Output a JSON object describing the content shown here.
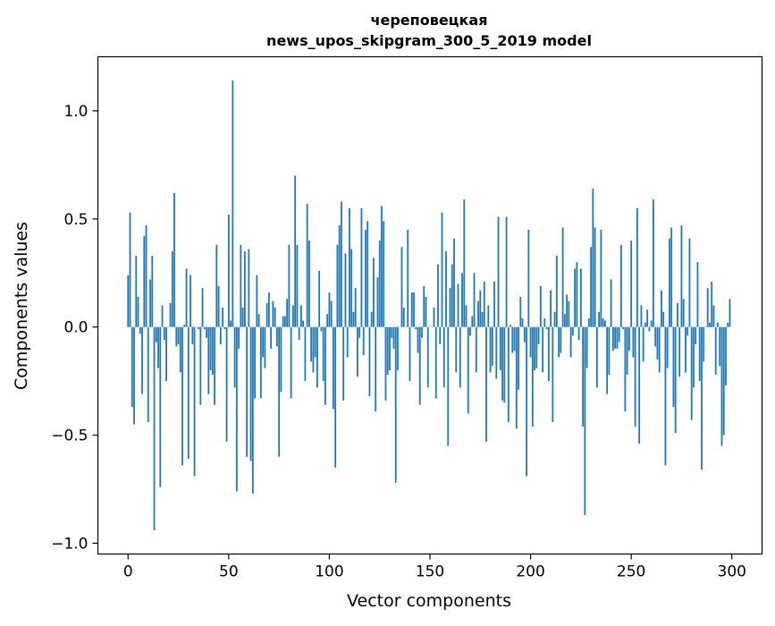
{
  "chart_data": {
    "type": "bar",
    "title_line1": "череповецкая",
    "title_line2": "news_upos_skipgram_300_5_2019 model",
    "xlabel": "Vector components",
    "ylabel": "Components values",
    "xlim": [
      -15,
      315
    ],
    "ylim": [
      -1.05,
      1.25
    ],
    "xticks": [
      0,
      50,
      100,
      150,
      200,
      250,
      300
    ],
    "xtick_labels": [
      "0",
      "50",
      "100",
      "150",
      "200",
      "250",
      "300"
    ],
    "yticks": [
      -1.0,
      -0.5,
      0.0,
      0.5,
      1.0
    ],
    "ytick_labels": [
      "−1.0",
      "−0.5",
      "0.0",
      "0.5",
      "1.0"
    ],
    "grid": false,
    "bar_color": "#1f77b4",
    "values": [
      0.24,
      0.53,
      -0.37,
      -0.45,
      0.33,
      0.14,
      -0.03,
      -0.31,
      0.42,
      0.47,
      -0.44,
      0.22,
      0.33,
      -0.94,
      -0.07,
      -0.19,
      -0.74,
      0.1,
      -0.06,
      -0.25,
      0.0,
      0.11,
      0.35,
      0.62,
      -0.09,
      -0.08,
      -0.21,
      -0.64,
      0.01,
      0.27,
      -0.61,
      0.24,
      -0.08,
      -0.69,
      0.0,
      -0.01,
      -0.36,
      0.18,
      -0.01,
      -0.05,
      -0.31,
      -0.2,
      -0.22,
      -0.36,
      0.38,
      0.19,
      -0.08,
      0.09,
      -0.01,
      -0.53,
      0.52,
      0.03,
      1.14,
      -0.28,
      -0.76,
      -0.1,
      0.38,
      0.09,
      0.35,
      -0.6,
      0.36,
      -0.62,
      -0.77,
      -0.33,
      0.24,
      0.06,
      -0.33,
      -0.14,
      -0.19,
      0.11,
      0.16,
      -0.1,
      0.12,
      0.09,
      -0.09,
      -0.6,
      -0.3,
      0.05,
      0.05,
      0.13,
      0.38,
      -0.33,
      0.1,
      0.7,
      0.38,
      -0.06,
      0.1,
      0.03,
      -0.25,
      0.57,
      0.4,
      -0.16,
      -0.21,
      -0.14,
      -0.28,
      0.26,
      -0.02,
      -0.25,
      -0.36,
      0.06,
      0.16,
      0.12,
      -0.38,
      -0.65,
      0.38,
      0.47,
      0.58,
      -0.34,
      0.34,
      -0.14,
      0.55,
      0.36,
      0.07,
      0.18,
      -0.23,
      -0.05,
      0.55,
      -0.13,
      0.45,
      0.49,
      -0.32,
      0.07,
      0.32,
      -0.39,
      0.23,
      0.4,
      0.56,
      0.49,
      -0.34,
      -0.22,
      -0.2,
      -0.05,
      -0.1,
      -0.72,
      -0.2,
      0.0,
      0.37,
      0.09,
      0.0,
      0.45,
      -0.25,
      0.16,
      0.16,
      -0.01,
      -0.12,
      -0.36,
      -0.05,
      0.19,
      0.14,
      -0.28,
      0.0,
      0.0,
      0.09,
      -0.33,
      0.29,
      -0.08,
      0.53,
      -0.28,
      0.35,
      -0.55,
      0.18,
      0.29,
      0.41,
      -0.21,
      0.2,
      -0.28,
      0.25,
      0.59,
      0.1,
      -0.4,
      -0.04,
      0.05,
      0.25,
      -0.21,
      0.12,
      0.17,
      0.07,
      0.21,
      -0.53,
      0.1,
      -0.21,
      -0.18,
      0.21,
      -0.24,
      0.51,
      -0.2,
      -0.34,
      -0.35,
      0.51,
      -0.44,
      0.01,
      -0.12,
      -0.11,
      -0.47,
      -0.29,
      0.14,
      0.04,
      -0.07,
      -0.69,
      0.45,
      -0.14,
      -0.46,
      -0.2,
      -0.19,
      -0.08,
      0.19,
      -0.21,
      0.04,
      -0.01,
      -0.25,
      0.17,
      -0.44,
      0.07,
      0.33,
      -0.14,
      -0.12,
      0.46,
      0.06,
      0.15,
      0.12,
      -0.14,
      -0.04,
      0.27,
      0.3,
      -0.06,
      0.27,
      -0.46,
      -0.87,
      -0.19,
      0.04,
      0.37,
      0.64,
      0.46,
      -0.28,
      0.07,
      0.45,
      0.04,
      0.03,
      -0.31,
      -0.22,
      0.22,
      -0.11,
      -0.1,
      -0.1,
      -0.07,
      0.38,
      -0.01,
      -0.39,
      -0.22,
      -0.11,
      0.4,
      -0.14,
      -0.46,
      0.55,
      -0.54,
      0.1,
      -0.16,
      0.02,
      0.08,
      -0.02,
      0.03,
      0.59,
      -0.09,
      -0.15,
      -0.21,
      0.17,
      0.07,
      -0.64,
      -0.19,
      0.41,
      0.46,
      -0.37,
      -0.49,
      0.11,
      -0.23,
      0.47,
      0.13,
      -0.21,
      -0.04,
      0.41,
      -0.43,
      -0.28,
      -0.08,
      0.3,
      -0.25,
      -0.66,
      -0.16,
      0.0,
      0.18,
      0.02,
      0.21,
      0.1,
      -0.22,
      0.02,
      -0.18,
      -0.55,
      -0.5,
      -0.27,
      0.02,
      0.13
    ]
  }
}
